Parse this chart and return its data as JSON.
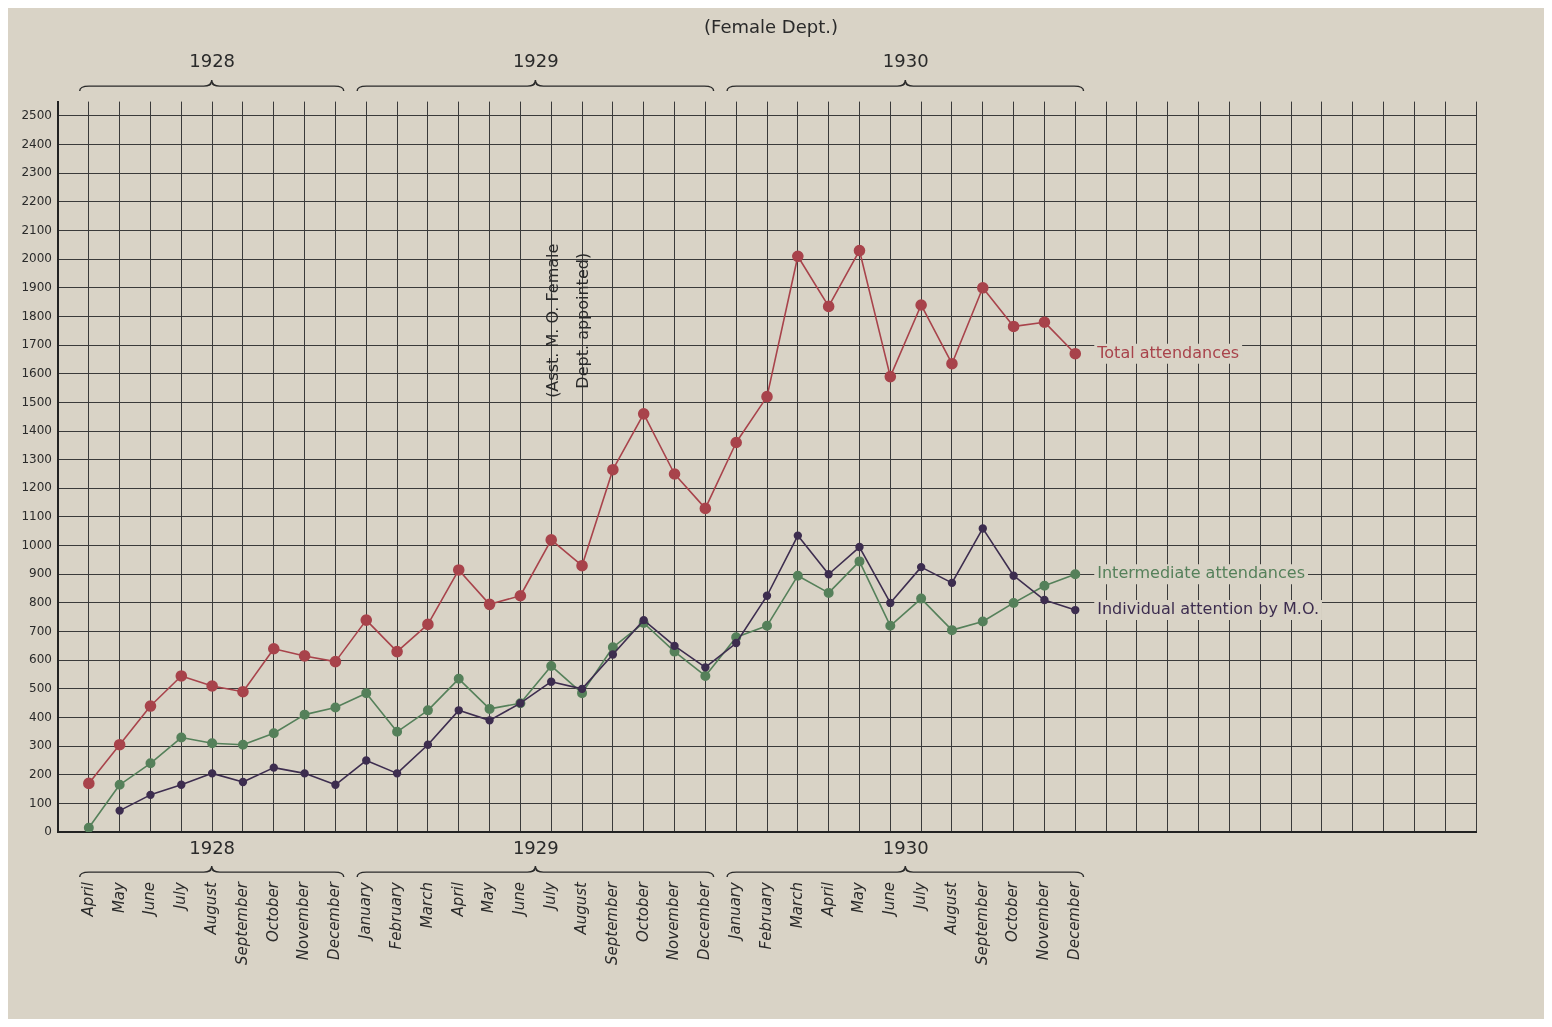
{
  "chart_data": {
    "type": "line",
    "title": "(Female Dept.)",
    "x": [
      "1928-04",
      "1928-05",
      "1928-06",
      "1928-07",
      "1928-08",
      "1928-09",
      "1928-10",
      "1928-11",
      "1928-12",
      "1929-01",
      "1929-02",
      "1929-03",
      "1929-04",
      "1929-05",
      "1929-06",
      "1929-07",
      "1929-08",
      "1929-09",
      "1929-10",
      "1929-11",
      "1929-12",
      "1930-01",
      "1930-02",
      "1930-03",
      "1930-04",
      "1930-05",
      "1930-06",
      "1930-07",
      "1930-08",
      "1930-09",
      "1930-10",
      "1930-11",
      "1930-12"
    ],
    "series": [
      {
        "name": "Total attendances",
        "color": "#a8434b",
        "values": [
          170,
          305,
          440,
          545,
          510,
          490,
          640,
          615,
          595,
          740,
          630,
          725,
          915,
          795,
          825,
          1020,
          930,
          1265,
          1460,
          1250,
          1130,
          1360,
          1520,
          2010,
          1835,
          2030,
          1590,
          1840,
          1635,
          1900,
          1765,
          1780,
          1670
        ]
      },
      {
        "name": "Intermediate attendances",
        "color": "#55805a",
        "values": [
          15,
          165,
          240,
          330,
          310,
          305,
          345,
          410,
          435,
          485,
          350,
          425,
          535,
          430,
          450,
          580,
          485,
          645,
          730,
          630,
          545,
          680,
          720,
          895,
          835,
          945,
          720,
          815,
          705,
          735,
          800,
          860,
          900
        ]
      },
      {
        "name": "Individual attention by M.O.",
        "color": "#3d2d4f",
        "x": [
          "1928-05",
          "1928-06",
          "1928-07",
          "1928-08",
          "1928-09",
          "1928-10",
          "1928-11",
          "1928-12",
          "1929-01",
          "1929-02",
          "1929-03",
          "1929-04",
          "1929-05",
          "1929-06",
          "1929-07",
          "1929-08",
          "1929-09",
          "1929-10",
          "1929-11",
          "1929-12",
          "1930-01",
          "1930-02",
          "1930-03",
          "1930-04",
          "1930-05",
          "1930-06",
          "1930-07",
          "1930-08",
          "1930-09",
          "1930-10",
          "1930-11",
          "1930-12"
        ],
        "values": [
          75,
          130,
          165,
          205,
          175,
          225,
          205,
          165,
          250,
          205,
          305,
          425,
          390,
          450,
          525,
          500,
          620,
          740,
          650,
          575,
          660,
          825,
          1035,
          900,
          995,
          800,
          925,
          870,
          1060,
          895,
          810,
          775
        ]
      }
    ],
    "xlim": [
      "1928-03",
      "1932-01"
    ],
    "xticks": [
      {
        "value": "1928-03",
        "label": null
      },
      {
        "value": "1928-04",
        "label": "April"
      },
      {
        "value": "1928-05",
        "label": "May"
      },
      {
        "value": "1928-06",
        "label": "June"
      },
      {
        "value": "1928-07",
        "label": "July"
      },
      {
        "value": "1928-08",
        "label": "August"
      },
      {
        "value": "1928-09",
        "label": "September"
      },
      {
        "value": "1928-10",
        "label": "October"
      },
      {
        "value": "1928-11",
        "label": "November"
      },
      {
        "value": "1928-12",
        "label": "December"
      },
      {
        "value": "1929-01",
        "label": "January"
      },
      {
        "value": "1929-02",
        "label": "February"
      },
      {
        "value": "1929-03",
        "label": "March"
      },
      {
        "value": "1929-04",
        "label": "April"
      },
      {
        "value": "1929-05",
        "label": "May"
      },
      {
        "value": "1929-06",
        "label": "June"
      },
      {
        "value": "1929-07",
        "label": "July"
      },
      {
        "value": "1929-08",
        "label": "August"
      },
      {
        "value": "1929-09",
        "label": "September"
      },
      {
        "value": "1929-10",
        "label": "October"
      },
      {
        "value": "1929-11",
        "label": "November"
      },
      {
        "value": "1929-12",
        "label": "December"
      },
      {
        "value": "1930-01",
        "label": "January"
      },
      {
        "value": "1930-02",
        "label": "February"
      },
      {
        "value": "1930-03",
        "label": "March"
      },
      {
        "value": "1930-04",
        "label": "April"
      },
      {
        "value": "1930-05",
        "label": "May"
      },
      {
        "value": "1930-06",
        "label": "June"
      },
      {
        "value": "1930-07",
        "label": "July"
      },
      {
        "value": "1930-08",
        "label": "August"
      },
      {
        "value": "1930-09",
        "label": "September"
      },
      {
        "value": "1930-10",
        "label": "October"
      },
      {
        "value": "1930-11",
        "label": "November"
      },
      {
        "value": "1930-12",
        "label": "December"
      },
      {
        "value": "1931-01",
        "label": null
      },
      {
        "value": "1931-02",
        "label": null
      },
      {
        "value": "1931-03",
        "label": null
      },
      {
        "value": "1931-04",
        "label": null
      },
      {
        "value": "1931-05",
        "label": null
      },
      {
        "value": "1931-06",
        "label": null
      },
      {
        "value": "1931-07",
        "label": null
      },
      {
        "value": "1931-08",
        "label": null
      },
      {
        "value": "1931-09",
        "label": null
      },
      {
        "value": "1931-10",
        "label": null
      },
      {
        "value": "1931-11",
        "label": null
      },
      {
        "value": "1931-12",
        "label": null
      },
      {
        "value": "1932-01",
        "label": null
      }
    ],
    "ylim": [
      0,
      2550
    ],
    "yticks": [
      0,
      100,
      200,
      300,
      400,
      500,
      600,
      700,
      800,
      900,
      1000,
      1100,
      1200,
      1300,
      1400,
      1500,
      1600,
      1700,
      1800,
      1900,
      2000,
      2100,
      2200,
      2300,
      2400,
      2500
    ],
    "grid": true,
    "legend": false,
    "marker": "circle",
    "line_style": "solid",
    "annotations": [
      "1928",
      "1929",
      "1930",
      "(Asst. M. O. Female Dept. appointed)"
    ]
  }
}
